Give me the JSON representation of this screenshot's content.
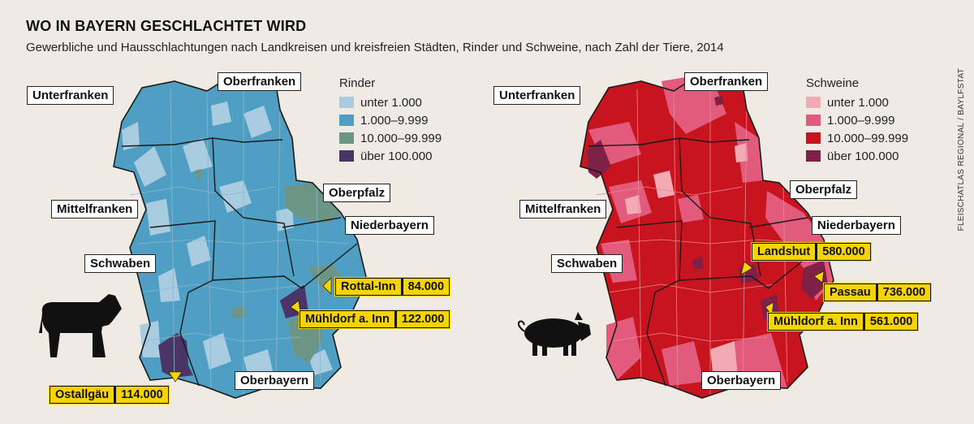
{
  "title": "WO IN BAYERN GESCHLACHTET WIRD",
  "subtitle": "Gewerbliche und Hausschlachtungen nach Landkreisen und kreisfreien Städten, Rinder und Schweine, nach Zahl der Tiere, 2014",
  "source": "FLEISCHATLAS REGIONAL / BAYLFSTAT",
  "maps": [
    {
      "id": "rinder",
      "legend_title": "Rinder",
      "classes": [
        {
          "label": "unter 1.000",
          "color": "#a9cce0"
        },
        {
          "label": "1.000–9.999",
          "color": "#4f9fc4"
        },
        {
          "label": "10.000–99.999",
          "color": "#6d9585"
        },
        {
          "label": "über 100.000",
          "color": "#4b3466"
        }
      ],
      "regions": [
        "Unterfranken",
        "Oberfranken",
        "Oberpfalz",
        "Mittelfranken",
        "Niederbayern",
        "Schwaben",
        "Oberbayern"
      ],
      "callouts": [
        {
          "name": "Rottal-Inn",
          "value": "84.000"
        },
        {
          "name": "Mühldorf a. Inn",
          "value": "122.000"
        },
        {
          "name": "Ostallgäu",
          "value": "114.000"
        }
      ],
      "animal_icon": "cow-icon"
    },
    {
      "id": "schweine",
      "legend_title": "Schweine",
      "classes": [
        {
          "label": "unter 1.000",
          "color": "#f2aab5"
        },
        {
          "label": "1.000–9.999",
          "color": "#e25b7c"
        },
        {
          "label": "10.000–99.999",
          "color": "#c8141e"
        },
        {
          "label": "über 100.000",
          "color": "#7f2146"
        }
      ],
      "regions": [
        "Unterfranken",
        "Oberfranken",
        "Oberpfalz",
        "Mittelfranken",
        "Niederbayern",
        "Schwaben",
        "Oberbayern"
      ],
      "callouts": [
        {
          "name": "Landshut",
          "value": "580.000"
        },
        {
          "name": "Passau",
          "value": "736.000"
        },
        {
          "name": "Mühldorf a. Inn",
          "value": "561.000"
        }
      ],
      "animal_icon": "pig-icon"
    }
  ]
}
